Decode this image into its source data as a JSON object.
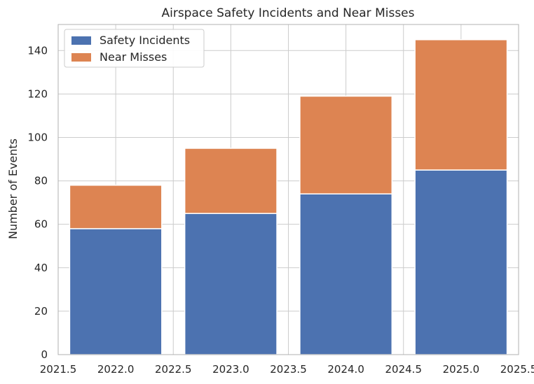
{
  "chart_data": {
    "type": "bar",
    "stacked": true,
    "title": "Airspace Safety Incidents and Near Misses",
    "xlabel": "",
    "ylabel": "Number of Events",
    "x": [
      2022,
      2023,
      2024,
      2025
    ],
    "series": [
      {
        "name": "Safety Incidents",
        "values": [
          58,
          65,
          74,
          85
        ],
        "color": "#4c72b0"
      },
      {
        "name": "Near Misses",
        "values": [
          20,
          30,
          45,
          60
        ],
        "color": "#dd8452"
      }
    ],
    "bar_width": 0.8,
    "xlim": [
      2021.5,
      2025.5
    ],
    "ylim": [
      0,
      152
    ],
    "xticks": [
      "2021.5",
      "2022.0",
      "2022.5",
      "2023.0",
      "2023.5",
      "2024.0",
      "2024.5",
      "2025.0",
      "2025.5"
    ],
    "yticks": [
      "0",
      "20",
      "40",
      "60",
      "80",
      "100",
      "120",
      "140"
    ],
    "grid": true,
    "legend_position": "top-left"
  }
}
